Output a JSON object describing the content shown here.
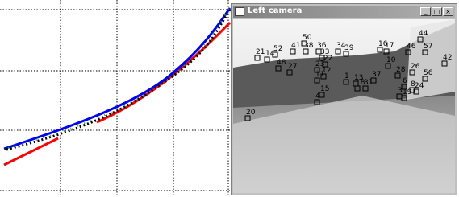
{
  "window": {
    "title": "Left camera"
  },
  "points": [
    {
      "label": "50"
    },
    {
      "label": "41"
    },
    {
      "label": "38"
    },
    {
      "label": "36"
    },
    {
      "label": "34"
    },
    {
      "label": "33"
    },
    {
      "label": "39"
    },
    {
      "label": "52"
    },
    {
      "label": "21"
    },
    {
      "label": "14"
    },
    {
      "label": "48"
    },
    {
      "label": "22"
    },
    {
      "label": "16"
    },
    {
      "label": "17"
    },
    {
      "label": "44"
    },
    {
      "label": "46"
    },
    {
      "label": "57"
    },
    {
      "label": "42"
    },
    {
      "label": "27"
    },
    {
      "label": "23"
    },
    {
      "label": "11"
    },
    {
      "label": "12"
    },
    {
      "label": "10"
    },
    {
      "label": "28"
    },
    {
      "label": "26"
    },
    {
      "label": "56"
    },
    {
      "label": "1"
    },
    {
      "label": "13"
    },
    {
      "label": "37"
    },
    {
      "label": "31"
    },
    {
      "label": "18"
    },
    {
      "label": "6"
    },
    {
      "label": "8"
    },
    {
      "label": "24"
    },
    {
      "label": "15"
    },
    {
      "label": "4"
    },
    {
      "label": "20"
    },
    {
      "label": "3"
    },
    {
      "label": "19"
    }
  ]
}
